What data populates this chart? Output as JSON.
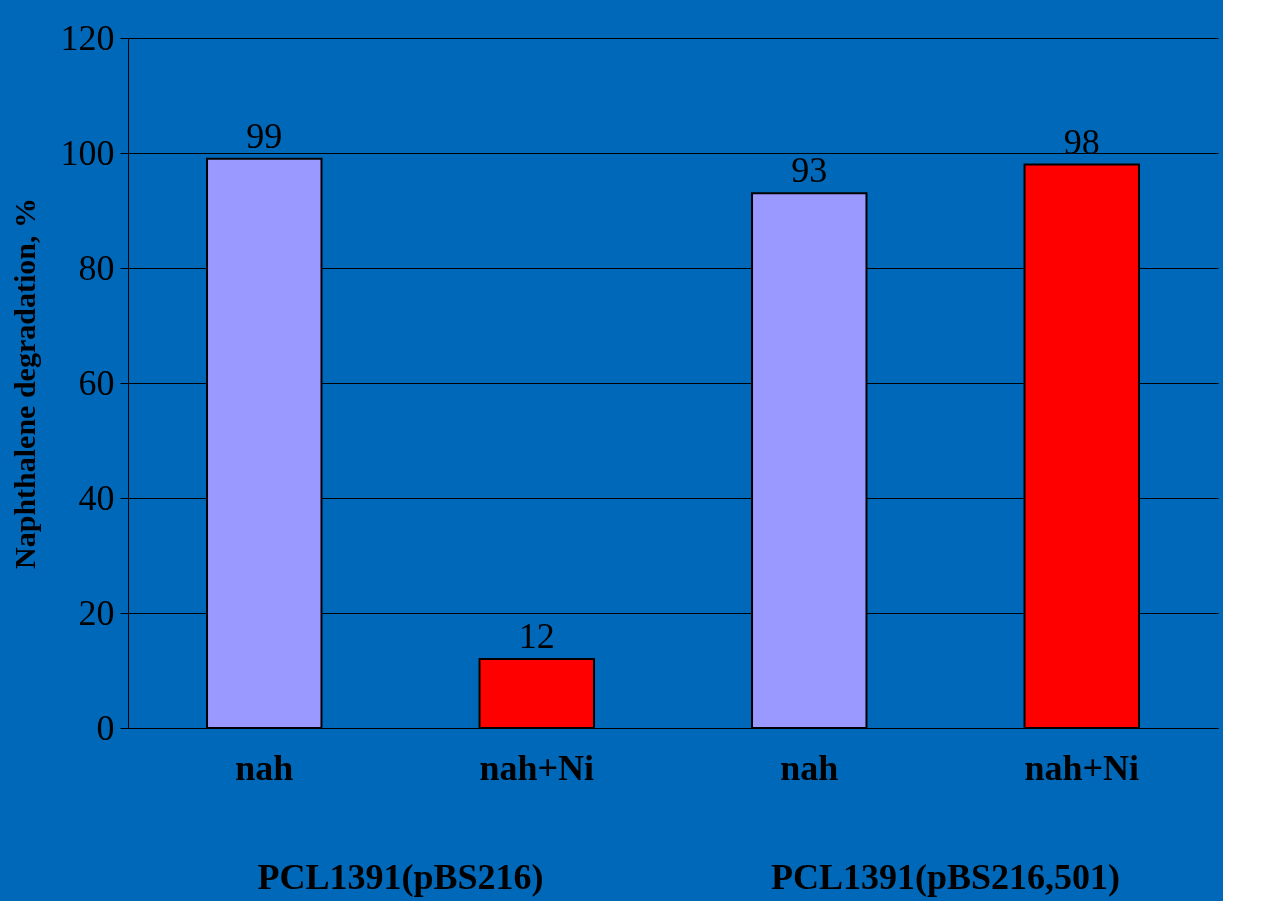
{
  "chart_data": {
    "type": "bar",
    "ylabel": "Naphthalene degradation, %",
    "categories": [
      "nah",
      "nah+Ni",
      "nah",
      "nah+Ni"
    ],
    "values": [
      99,
      12,
      93,
      98
    ],
    "colors": [
      "#9999ff",
      "#ff0000",
      "#9999ff",
      "#ff0000"
    ],
    "ylim": [
      0,
      120
    ],
    "yticks": [
      0,
      20,
      40,
      60,
      80,
      100,
      120
    ],
    "grid": "y",
    "data_labels": true,
    "legend": false,
    "annotations": [
      "PCL1391(pBS216)",
      "PCL1391(pBS216,501)"
    ]
  }
}
